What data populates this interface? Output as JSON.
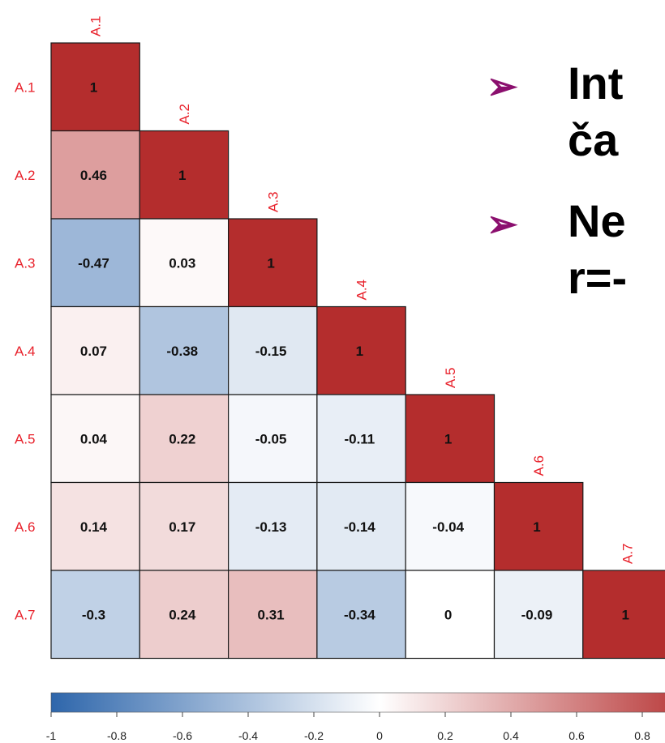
{
  "chart_data": {
    "type": "heatmap",
    "variables": [
      "A.1",
      "A.2",
      "A.3",
      "A.4",
      "A.5",
      "A.6",
      "A.7"
    ],
    "matrix": [
      [
        1
      ],
      [
        0.46,
        1
      ],
      [
        -0.47,
        0.03,
        1
      ],
      [
        0.07,
        -0.38,
        -0.15,
        1
      ],
      [
        0.04,
        0.22,
        -0.05,
        -0.11,
        1
      ],
      [
        0.14,
        0.17,
        -0.13,
        -0.14,
        -0.04,
        1
      ],
      [
        -0.3,
        0.24,
        0.31,
        -0.34,
        0,
        -0.09,
        1
      ]
    ],
    "value_labels": [
      [
        "1"
      ],
      [
        "0.46",
        "1"
      ],
      [
        "-0.47",
        "0.03",
        "1"
      ],
      [
        "0.07",
        "-0.38",
        "-0.15",
        "1"
      ],
      [
        "0.04",
        "0.22",
        "-0.05",
        "-0.11",
        "1"
      ],
      [
        "0.14",
        "0.17",
        "-0.13",
        "-0.14",
        "-0.04",
        "1"
      ],
      [
        "-0.3",
        "0.24",
        "0.31",
        "-0.34",
        "0",
        "-0.09",
        "1"
      ]
    ],
    "layout": "lower-triangle",
    "colorbar": {
      "range": [
        -1,
        1
      ],
      "ticks": [
        -1,
        -0.8,
        -0.6,
        -0.4,
        -0.2,
        0,
        0.2,
        0.4,
        0.6,
        0.8
      ],
      "tick_labels": [
        "-1",
        "-0.8",
        "-0.6",
        "-0.4",
        "-0.2",
        "0",
        "0.2",
        "0.4",
        "0.6",
        "0.8"
      ],
      "colors": {
        "negative": "#2e66ab",
        "zero": "#ffffff",
        "positive": "#b42d2d"
      }
    },
    "label_color": "#e8202a"
  },
  "bullets": [
    {
      "arrow": "➢",
      "text": "Int"
    },
    {
      "arrow": "",
      "text": "ča"
    },
    {
      "arrow": "➢",
      "text": "Ne"
    },
    {
      "arrow": "",
      "text": "r=-"
    }
  ]
}
